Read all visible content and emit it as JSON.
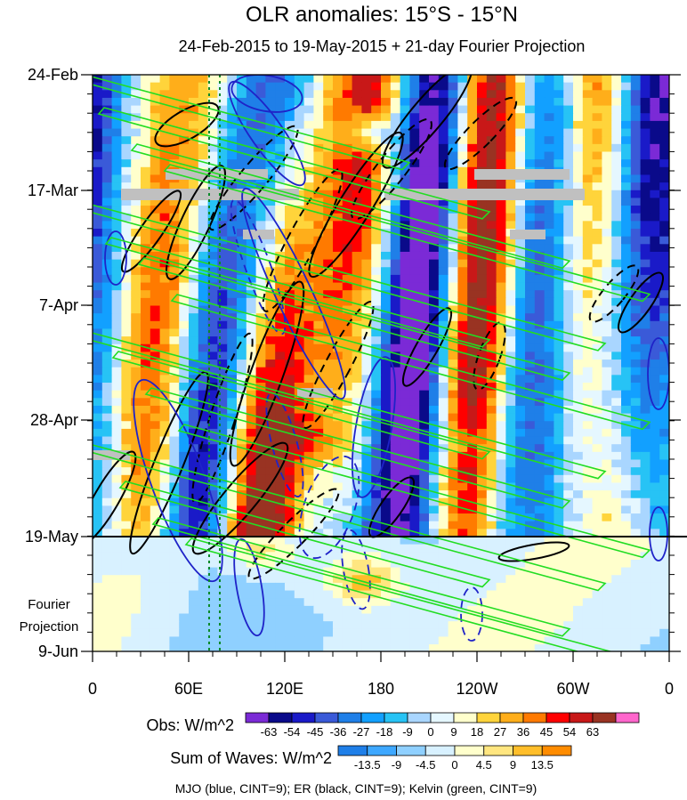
{
  "chart_data": {
    "type": "heatmap",
    "title": "OLR anomalies: 15°S - 15°N",
    "subtitle": "24-Feb-2015 to 19-May-2015 + 21-day Fourier Projection",
    "x_ticks": [
      "0",
      "60E",
      "120E",
      "180",
      "120W",
      "60W",
      "0"
    ],
    "y_ticks": [
      "24-Feb",
      "17-Mar",
      "7-Apr",
      "28-Apr",
      "19-May",
      "9-Jun"
    ],
    "projection_label": [
      "Fourier",
      "Projection"
    ],
    "obs_colorbar": {
      "label": "Obs: W/m^2",
      "levels": [
        "-63",
        "-54",
        "-45",
        "-36",
        "-27",
        "-18",
        "-9",
        "0",
        "9",
        "18",
        "27",
        "36",
        "45",
        "54",
        "63"
      ],
      "colors": [
        "#7b2ad6",
        "#0a0a8a",
        "#1a1ac8",
        "#3a5ad8",
        "#1f7fe8",
        "#12a0ff",
        "#27c3f5",
        "#a9d6ff",
        "#e5f7ff",
        "#ffffcc",
        "#ffd43b",
        "#ffae1a",
        "#ff7a00",
        "#ff0000",
        "#c81818",
        "#993322",
        "#ff66cc"
      ]
    },
    "waves_colorbar": {
      "label": "Sum of Waves: W/m^2",
      "levels": [
        "-13.5",
        "-9",
        "-4.5",
        "0",
        "4.5",
        "9",
        "13.5"
      ],
      "colors": [
        "#1f7fe8",
        "#3ea8ff",
        "#8fd0ff",
        "#d8f1ff",
        "#ffffcc",
        "#ffe680",
        "#ffbe2a",
        "#ff8c00"
      ]
    },
    "footnote": "MJO (blue, CINT=9); ER (black, CINT=9); Kelvin (green, CINT=9)",
    "series": [
      {
        "name": "MJO",
        "color": "#1f23c8"
      },
      {
        "name": "ER",
        "color": "#000000"
      },
      {
        "name": "Kelvin",
        "color": "#22dd22"
      }
    ]
  }
}
